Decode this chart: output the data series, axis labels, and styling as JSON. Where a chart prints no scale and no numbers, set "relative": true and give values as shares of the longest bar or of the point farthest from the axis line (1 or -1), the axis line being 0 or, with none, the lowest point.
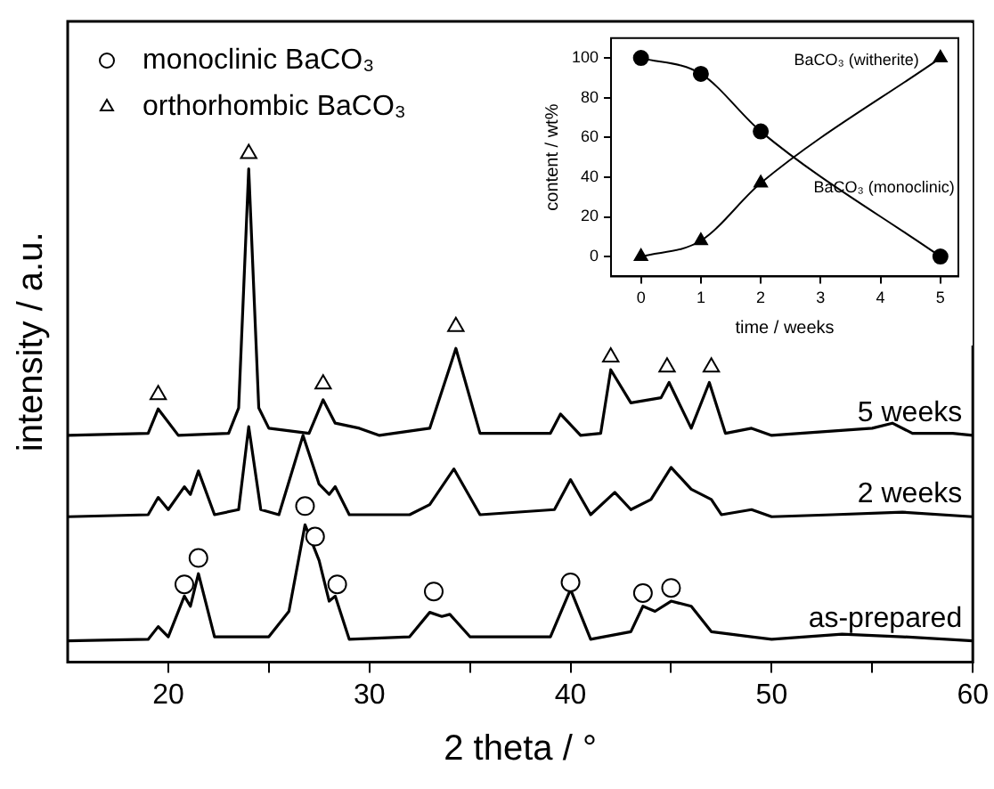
{
  "chart_data": [
    {
      "type": "line",
      "xlabel": "2 theta / °",
      "ylabel": "intensity / a.u.",
      "relative": true,
      "xlim": [
        15,
        60
      ],
      "xticks": [
        20,
        {
          "value": 25,
          "label": null
        },
        30,
        {
          "value": 35,
          "label": null
        },
        40,
        {
          "value": 45,
          "label": null
        },
        50,
        {
          "value": 55,
          "label": null
        },
        60
      ],
      "legend": "top left",
      "marker": "none",
      "series": [
        {
          "name": "as-prepared",
          "color": "#000000",
          "x": [
            15,
            19,
            19.5,
            20,
            20.8,
            21.1,
            21.5,
            22.3,
            25,
            26,
            26.8,
            27.5,
            28,
            28.3,
            29,
            32,
            33,
            33.6,
            34,
            35,
            39,
            40,
            41,
            43,
            43.6,
            44.2,
            45,
            46,
            47,
            49,
            50,
            53.5,
            56.5,
            60
          ],
          "values": [
            0.042,
            0.045,
            0.07,
            0.05,
            0.13,
            0.11,
            0.174,
            0.05,
            0.05,
            0.1,
            0.27,
            0.2,
            0.12,
            0.13,
            0.045,
            0.05,
            0.098,
            0.09,
            0.094,
            0.05,
            0.05,
            0.143,
            0.045,
            0.06,
            0.11,
            0.1,
            0.12,
            0.11,
            0.06,
            0.05,
            0.045,
            0.055,
            0.05,
            0.042
          ]
        },
        {
          "name": "2 weeks",
          "color": "#000000",
          "x": [
            15,
            19,
            19.5,
            20,
            20.8,
            21.1,
            21.5,
            22.3,
            23.5,
            24,
            24.6,
            25.5,
            26.7,
            27.5,
            28,
            28.3,
            29,
            32,
            33,
            34.2,
            35.5,
            39.2,
            40,
            41,
            42.2,
            43,
            44,
            45,
            46,
            47,
            47.5,
            49,
            50,
            53,
            56.5,
            60
          ],
          "values": [
            0.286,
            0.29,
            0.324,
            0.3,
            0.345,
            0.33,
            0.376,
            0.29,
            0.3,
            0.463,
            0.3,
            0.29,
            0.446,
            0.35,
            0.33,
            0.345,
            0.29,
            0.29,
            0.31,
            0.38,
            0.29,
            0.3,
            0.359,
            0.29,
            0.334,
            0.3,
            0.32,
            0.383,
            0.34,
            0.32,
            0.29,
            0.3,
            0.286,
            0.29,
            0.295,
            0.286
          ]
        },
        {
          "name": "5 weeks",
          "color": "#000000",
          "x": [
            15,
            19,
            19.5,
            20.5,
            23,
            23.5,
            24,
            24.5,
            25,
            27,
            27.7,
            28.3,
            29.5,
            30.5,
            33,
            34.3,
            35.5,
            39,
            39.5,
            40.5,
            41.5,
            42,
            43,
            44.5,
            44.9,
            46,
            46.9,
            47.7,
            49,
            50,
            55,
            56,
            57,
            59,
            60
          ],
          "values": [
            0.446,
            0.45,
            0.498,
            0.446,
            0.45,
            0.5,
            0.97,
            0.5,
            0.46,
            0.45,
            0.516,
            0.47,
            0.46,
            0.446,
            0.46,
            0.617,
            0.45,
            0.45,
            0.488,
            0.446,
            0.45,
            0.575,
            0.51,
            0.52,
            0.55,
            0.46,
            0.55,
            0.45,
            0.46,
            0.446,
            0.46,
            0.47,
            0.45,
            0.45,
            0.446
          ]
        },
        {
          "name": "monoclinic BaCO₃",
          "type": "scatter",
          "marker": "circle",
          "color": "#000000",
          "x": [
            20.8,
            21.5,
            26.8,
            27.3,
            28.4,
            33.2,
            40,
            43.6,
            45
          ],
          "values": [
            0.153,
            0.205,
            0.307,
            0.247,
            0.153,
            0.139,
            0.157,
            0.136,
            0.146
          ]
        },
        {
          "name": "orthorhombic BaCO₃",
          "type": "scatter",
          "marker": "triangle",
          "color": "#000000",
          "x": [
            19.5,
            24,
            27.7,
            34.3,
            42,
            44.8,
            47
          ],
          "values": [
            0.526,
            1,
            0.547,
            0.66,
            0.6,
            0.58,
            0.58
          ]
        }
      ]
    },
    {
      "type": "line",
      "xlabel": "time / weeks",
      "ylabel": "content / wt%",
      "xlim": [
        -0.5,
        5.3
      ],
      "ylim": [
        -10,
        110
      ],
      "xticks": [
        0,
        1,
        2,
        3,
        4,
        5
      ],
      "yticks": [
        0,
        20,
        40,
        60,
        80,
        100
      ],
      "series": [
        {
          "name": "BaCO₃ (monoclinic)",
          "color": "#000000",
          "marker": "circle",
          "x": [
            0,
            1,
            2,
            5
          ],
          "values": [
            100,
            92,
            63,
            0
          ]
        },
        {
          "name": "BaCO₃ (witherite)",
          "color": "#000000",
          "marker": "triangle",
          "x": [
            0,
            1,
            2,
            5
          ],
          "values": [
            0,
            8,
            37,
            100
          ]
        }
      ]
    }
  ]
}
